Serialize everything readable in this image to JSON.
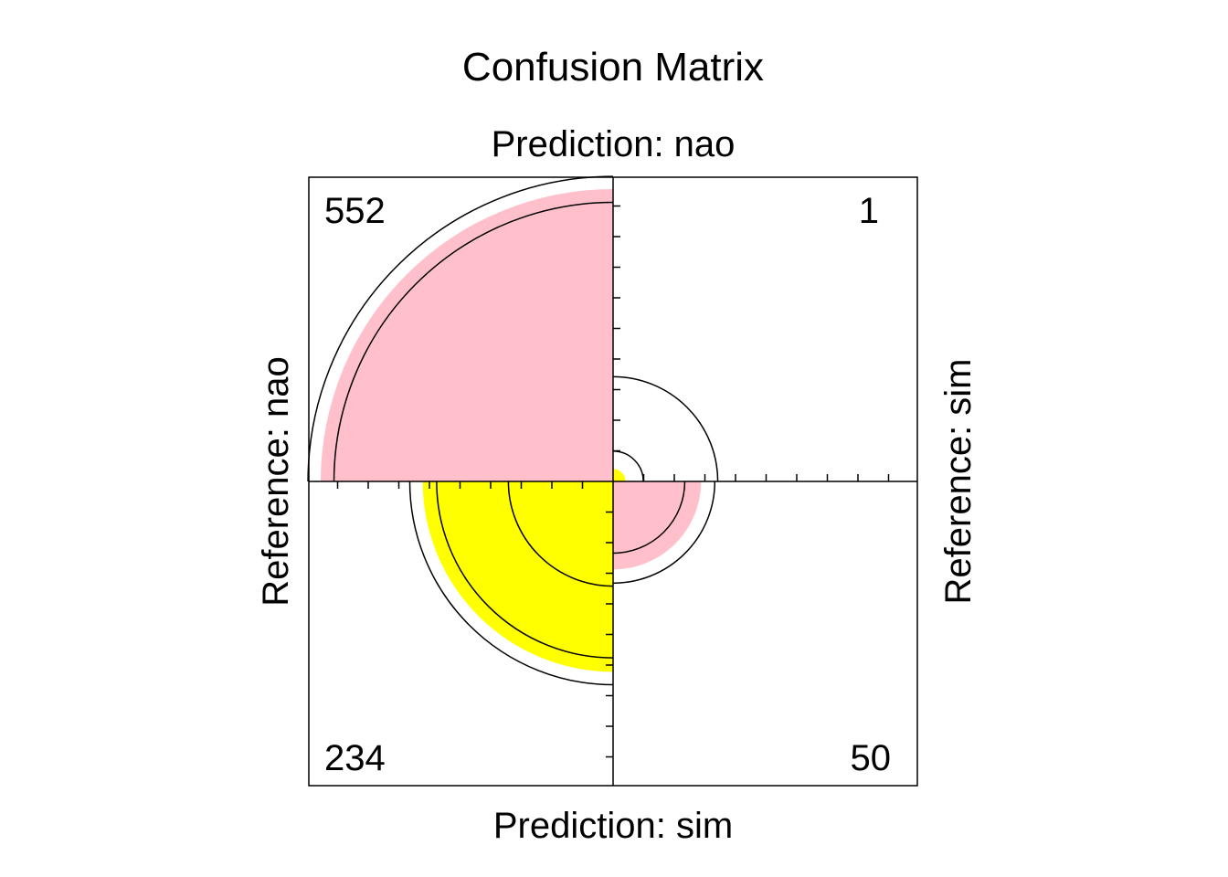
{
  "chart_data": {
    "type": "fourfold",
    "title": "Confusion Matrix",
    "top_label": "Prediction: nao",
    "bottom_label": "Prediction: sim",
    "left_label": "Reference: nao",
    "right_label": "Reference: sim",
    "cells": [
      {
        "position": "top-left",
        "reference": "nao",
        "prediction": "nao",
        "count": 552,
        "color": "#ffc0cb"
      },
      {
        "position": "top-right",
        "reference": "sim",
        "prediction": "nao",
        "count": 1,
        "color": "#ffff00"
      },
      {
        "position": "bottom-left",
        "reference": "nao",
        "prediction": "sim",
        "count": 234,
        "color": "#ffff00"
      },
      {
        "position": "bottom-right",
        "reference": "sim",
        "prediction": "sim",
        "count": 50,
        "color": "#ffc0cb"
      }
    ]
  }
}
